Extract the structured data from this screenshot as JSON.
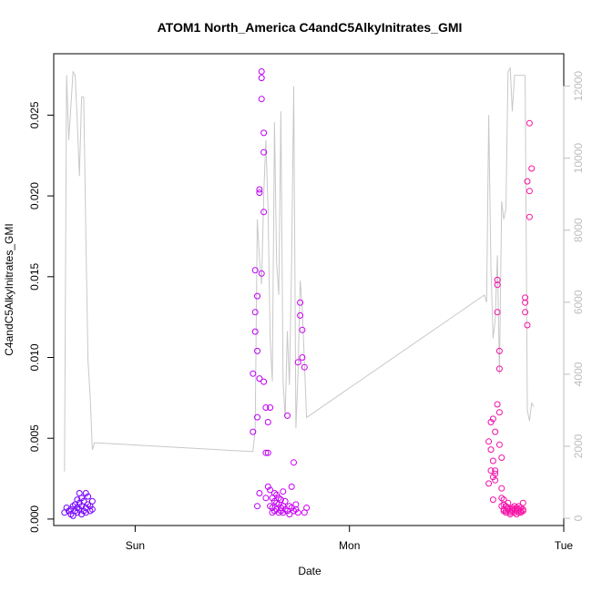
{
  "chart_data": {
    "type": "scatter",
    "title": "ATOM1 North_America C4andC5AlkyInitrates_GMI",
    "xlabel": "Date",
    "ylabel": "C4andC5AlkyInitrates_GMI",
    "x_unit": "days since Sun 00:00",
    "xlim": [
      -0.38,
      2.0
    ],
    "x_ticks": [
      {
        "value": 0,
        "label": "Sun"
      },
      {
        "value": 1,
        "label": "Mon"
      },
      {
        "value": 2,
        "label": "Tue"
      }
    ],
    "ylim": [
      -0.0004,
      0.0288
    ],
    "y_ticks": [
      0.0,
      0.005,
      0.01,
      0.015,
      0.02,
      0.025
    ],
    "y_tick_labels": [
      "0.000",
      "0.005",
      "0.010",
      "0.015",
      "0.020",
      "0.025"
    ],
    "y2lim": [
      -200,
      12900
    ],
    "y2_ticks": [
      0,
      2000,
      4000,
      6000,
      8000,
      10000,
      12000
    ],
    "y2_tick_labels": [
      "0",
      "2000",
      "4000",
      "6000",
      "8000",
      "10000",
      "12000"
    ],
    "grid": false,
    "legend": "none",
    "colors": {
      "axes": "#000000",
      "secondary_axis": "#bebebe",
      "altitude_line": "#c8c8c8",
      "points_early": "#6a00ff",
      "points_mid": "#d000f0",
      "points_late": "#ff1493"
    },
    "series": [
      {
        "kind": "points",
        "axis": "left",
        "x": [
          -0.33,
          -0.32,
          -0.31,
          -0.3,
          -0.3,
          -0.29,
          -0.29,
          -0.28,
          -0.28,
          -0.27,
          -0.27,
          -0.27,
          -0.26,
          -0.26,
          -0.26,
          -0.25,
          -0.25,
          -0.25,
          -0.24,
          -0.24,
          -0.23,
          -0.23,
          -0.23,
          -0.22,
          -0.22,
          -0.21,
          -0.21,
          -0.2,
          -0.2,
          0.55,
          0.55,
          0.56,
          0.56,
          0.56,
          0.57,
          0.57,
          0.57,
          0.57,
          0.58,
          0.58,
          0.58,
          0.58,
          0.59,
          0.59,
          0.59,
          0.59,
          0.6,
          0.6,
          0.6,
          0.6,
          0.61,
          0.61,
          0.61,
          0.62,
          0.62,
          0.62,
          0.63,
          0.63,
          0.63,
          0.64,
          0.64,
          0.64,
          0.65,
          0.65,
          0.65,
          0.66,
          0.66,
          0.66,
          0.67,
          0.67,
          0.67,
          0.68,
          0.68,
          0.68,
          0.69,
          0.69,
          0.69,
          0.7,
          0.7,
          0.71,
          0.71,
          0.72,
          0.72,
          0.73,
          0.73,
          0.74,
          0.74,
          0.75,
          0.75,
          0.76,
          0.76,
          0.77,
          0.77,
          0.78,
          0.78,
          0.79,
          0.79,
          0.8,
          1.65,
          1.65,
          1.66,
          1.66,
          1.66,
          1.67,
          1.67,
          1.67,
          1.67,
          1.68,
          1.68,
          1.68,
          1.68,
          1.69,
          1.69,
          1.69,
          1.69,
          1.7,
          1.7,
          1.7,
          1.7,
          1.71,
          1.71,
          1.71,
          1.71,
          1.72,
          1.72,
          1.72,
          1.72,
          1.73,
          1.73,
          1.73,
          1.74,
          1.74,
          1.74,
          1.75,
          1.75,
          1.75,
          1.76,
          1.76,
          1.76,
          1.77,
          1.77,
          1.77,
          1.78,
          1.78,
          1.78,
          1.79,
          1.79,
          1.79,
          1.8,
          1.8,
          1.8,
          1.81,
          1.81,
          1.81,
          1.82,
          1.82,
          1.82,
          1.83,
          1.83,
          1.84,
          1.84,
          1.84,
          1.85
        ],
        "y": [
          0.0004,
          0.0007,
          0.0005,
          0.0003,
          0.0006,
          0.0008,
          0.0002,
          0.0005,
          0.0009,
          0.0012,
          0.0004,
          0.0007,
          0.0016,
          0.001,
          0.0006,
          0.0003,
          0.0013,
          0.0008,
          0.0005,
          0.0011,
          0.0016,
          0.0007,
          0.0004,
          0.0009,
          0.0014,
          0.0005,
          0.0008,
          0.0006,
          0.0011,
          0.0054,
          0.009,
          0.0154,
          0.0128,
          0.0116,
          0.0104,
          0.0138,
          0.0008,
          0.0063,
          0.0202,
          0.0204,
          0.0087,
          0.0016,
          0.026,
          0.0273,
          0.0277,
          0.0152,
          0.0239,
          0.0227,
          0.019,
          0.0085,
          0.0069,
          0.0041,
          0.0013,
          0.002,
          0.006,
          0.0041,
          0.0069,
          0.0018,
          0.0008,
          0.0013,
          0.0007,
          0.0004,
          0.0011,
          0.0016,
          0.0005,
          0.001,
          0.0015,
          0.0006,
          0.0013,
          0.0009,
          0.0004,
          0.0007,
          0.0012,
          0.0005,
          0.0017,
          0.0008,
          0.0004,
          0.0006,
          0.0011,
          0.0064,
          0.0005,
          0.0008,
          0.0003,
          0.002,
          0.0007,
          0.0035,
          0.0005,
          0.0009,
          0.0006,
          0.0004,
          0.0097,
          0.0126,
          0.0134,
          0.01,
          0.0117,
          0.0094,
          0.0004,
          0.0007,
          0.0048,
          0.0022,
          0.006,
          0.0043,
          0.003,
          0.0012,
          0.0062,
          0.0036,
          0.0026,
          0.0054,
          0.0028,
          0.0024,
          0.003,
          0.0071,
          0.0148,
          0.0145,
          0.0128,
          0.0104,
          0.0093,
          0.0066,
          0.0046,
          0.0038,
          0.0019,
          0.0013,
          0.0008,
          0.0012,
          0.0006,
          0.0005,
          0.0009,
          0.0005,
          0.0008,
          0.0004,
          0.0007,
          0.001,
          0.0006,
          0.0004,
          0.0005,
          0.0003,
          0.0007,
          0.0006,
          0.0005,
          0.0004,
          0.0008,
          0.0006,
          0.0003,
          0.0007,
          0.0005,
          0.0004,
          0.0006,
          0.0008,
          0.0005,
          0.0007,
          0.0004,
          0.0006,
          0.0005,
          0.001,
          0.0137,
          0.0134,
          0.0128,
          0.012,
          0.0209,
          0.0245,
          0.0203,
          0.0187,
          0.0217
        ]
      },
      {
        "kind": "line",
        "axis": "right",
        "name": "altitude",
        "x": [
          -0.33,
          -0.32,
          -0.31,
          -0.29,
          -0.28,
          -0.27,
          -0.26,
          -0.25,
          -0.24,
          -0.23,
          -0.22,
          -0.21,
          -0.2,
          -0.19,
          0.55,
          0.56,
          0.57,
          0.58,
          0.59,
          0.6,
          0.61,
          0.62,
          0.63,
          0.64,
          0.65,
          0.66,
          0.67,
          0.68,
          0.69,
          0.7,
          0.71,
          0.72,
          0.73,
          0.74,
          0.75,
          0.76,
          0.77,
          0.78,
          0.79,
          0.8,
          1.63,
          1.64,
          1.65,
          1.66,
          1.67,
          1.68,
          1.69,
          1.7,
          1.71,
          1.72,
          1.73,
          1.74,
          1.75,
          1.76,
          1.77,
          1.78,
          1.79,
          1.8,
          1.81,
          1.82,
          1.83,
          1.84,
          1.85,
          1.86
        ],
        "y": [
          1300,
          12300,
          10500,
          12400,
          12300,
          11000,
          9500,
          11700,
          11700,
          7800,
          4400,
          3400,
          1900,
          2100,
          1850,
          2500,
          8300,
          7200,
          6500,
          9000,
          10500,
          8600,
          5000,
          3800,
          11000,
          7100,
          6200,
          11300,
          3800,
          2800,
          5200,
          3700,
          7100,
          12000,
          2500,
          4000,
          6600,
          5800,
          4300,
          2800,
          6200,
          6000,
          11200,
          7000,
          5000,
          5500,
          7300,
          4000,
          8800,
          8300,
          8600,
          12400,
          12500,
          11300,
          12300,
          12300,
          12300,
          12300,
          12300,
          12300,
          3000,
          2700,
          3200,
          3100
        ]
      }
    ]
  }
}
